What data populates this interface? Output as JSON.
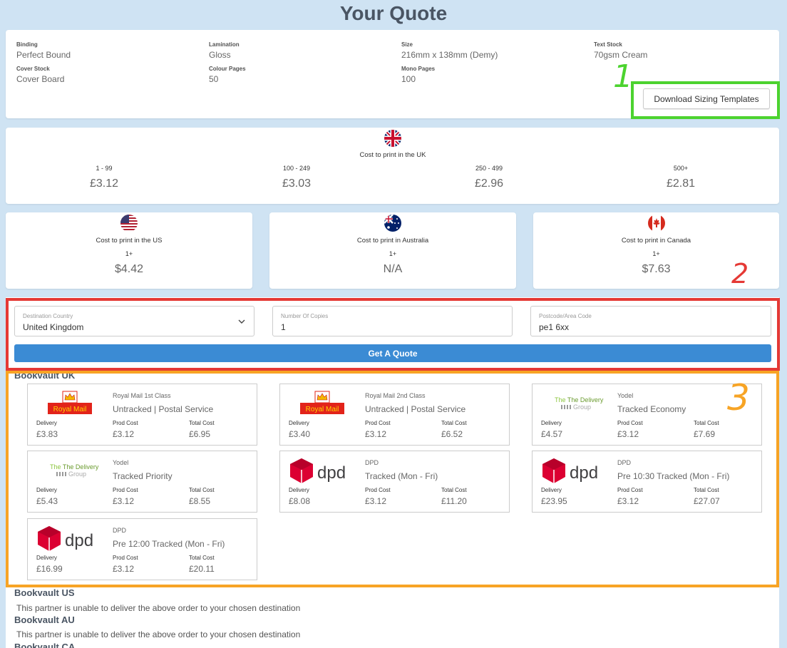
{
  "page": {
    "title": "Your Quote"
  },
  "specs": [
    {
      "label": "Binding",
      "value": "Perfect Bound"
    },
    {
      "label": "Lamination",
      "value": "Gloss"
    },
    {
      "label": "Size",
      "value": "216mm x 138mm (Demy)"
    },
    {
      "label": "Text Stock",
      "value": "70gsm Cream"
    },
    {
      "label": "Cover Stock",
      "value": "Cover Board"
    },
    {
      "label": "Colour Pages",
      "value": "50"
    },
    {
      "label": "Mono Pages",
      "value": "100"
    }
  ],
  "download_button": "Download Sizing Templates",
  "uk": {
    "title": "Cost to print in the UK",
    "tiers": [
      {
        "range": "1 - 99",
        "price": "£3.12"
      },
      {
        "range": "100 - 249",
        "price": "£3.03"
      },
      {
        "range": "250 - 499",
        "price": "£2.96"
      },
      {
        "range": "500+",
        "price": "£2.81"
      }
    ]
  },
  "regions": [
    {
      "title": "Cost to print in the US",
      "range": "1+",
      "price": "$4.42",
      "flag": "us-flag-icon"
    },
    {
      "title": "Cost to print in Australia",
      "range": "1+",
      "price": "N/A",
      "flag": "australia-flag-icon"
    },
    {
      "title": "Cost to print in Canada",
      "range": "1+",
      "price": "$7.63",
      "flag": "canada-flag-icon"
    }
  ],
  "form": {
    "country_label": "Destination Country",
    "country_value": "United Kingdom",
    "copies_label": "Number Of Copies",
    "copies_value": "1",
    "postcode_label": "Postcode/Area Code",
    "postcode_value": "pe1 6xx",
    "submit": "Get A Quote"
  },
  "uk_section": {
    "heading": "Bookvault UK"
  },
  "cost_labels": {
    "delivery": "Delivery",
    "prod": "Prod Cost",
    "total": "Total Cost"
  },
  "logos": {
    "royal_mail": "Royal Mail",
    "dpd": "dpd",
    "delivery_group_1": "The Delivery",
    "delivery_group_2": "Group"
  },
  "options": [
    {
      "carrier": "Royal Mail 1st Class",
      "service": "Untracked | Postal Service",
      "delivery": "£3.83",
      "prod": "£3.12",
      "total": "£6.95",
      "logo": "royalmail"
    },
    {
      "carrier": "Royal Mail 2nd Class",
      "service": "Untracked | Postal Service",
      "delivery": "£3.40",
      "prod": "£3.12",
      "total": "£6.52",
      "logo": "royalmail"
    },
    {
      "carrier": "Yodel",
      "service": "Tracked Economy",
      "delivery": "£4.57",
      "prod": "£3.12",
      "total": "£7.69",
      "logo": "deliverygroup"
    },
    {
      "carrier": "Yodel",
      "service": "Tracked Priority",
      "delivery": "£5.43",
      "prod": "£3.12",
      "total": "£8.55",
      "logo": "deliverygroup"
    },
    {
      "carrier": "DPD",
      "service": "Tracked (Mon - Fri)",
      "delivery": "£8.08",
      "prod": "£3.12",
      "total": "£11.20",
      "logo": "dpd"
    },
    {
      "carrier": "DPD",
      "service": "Pre 10:30 Tracked (Mon - Fri)",
      "delivery": "£23.95",
      "prod": "£3.12",
      "total": "£27.07",
      "logo": "dpd"
    },
    {
      "carrier": "DPD",
      "service": "Pre 12:00 Tracked (Mon - Fri)",
      "delivery": "£16.99",
      "prod": "£3.12",
      "total": "£20.11",
      "logo": "dpd"
    }
  ],
  "other_partners": [
    {
      "heading": "Bookvault US",
      "message": "This partner is unable to deliver the above order to your chosen destination"
    },
    {
      "heading": "Bookvault AU",
      "message": "This partner is unable to deliver the above order to your chosen destination"
    },
    {
      "heading": "Bookvault CA",
      "message": ""
    }
  ],
  "annotations": {
    "one": "1",
    "two": "2",
    "three": "3",
    "color_one": "#4cd32f",
    "color_two": "#e53935",
    "color_three": "#f7a425"
  }
}
